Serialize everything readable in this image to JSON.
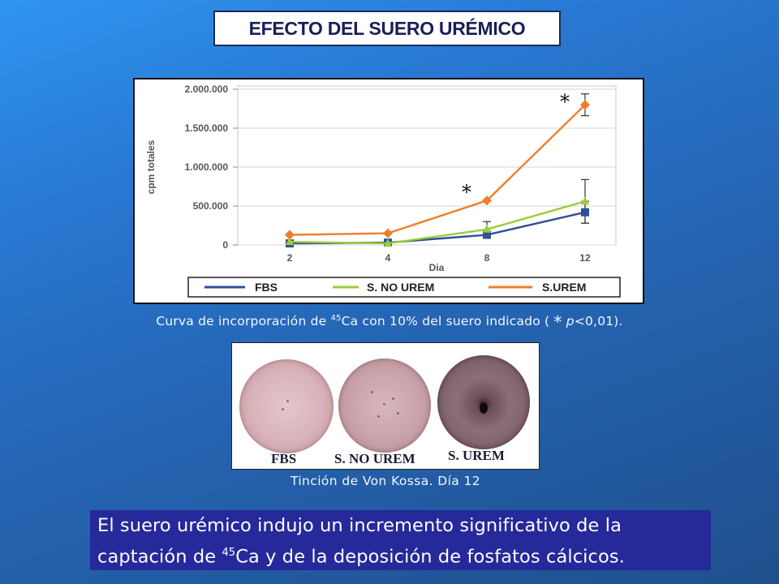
{
  "title": "EFECTO DEL SUERO URÉMICO",
  "chart_data": {
    "type": "line",
    "x": [
      2,
      4,
      8,
      12
    ],
    "xlabel": "Dia",
    "ylabel": "cpm totales",
    "ylim": [
      0,
      2000000
    ],
    "yticks": [
      0,
      500000,
      1000000,
      1500000,
      2000000
    ],
    "ytick_labels": [
      "0",
      "500.000",
      "1.000.000",
      "1.500.000",
      "2.000.000"
    ],
    "xtick_labels": [
      "2",
      "4",
      "8",
      "12"
    ],
    "grid": true,
    "legend_position": "bottom",
    "series": [
      {
        "name": "FBS",
        "color": "#2e4f9a",
        "marker": "square",
        "values": [
          20000,
          30000,
          130000,
          420000
        ],
        "errors": [
          0,
          0,
          0,
          140000
        ]
      },
      {
        "name": "S. NO UREM",
        "color": "#9ccc3a",
        "marker": "triangle",
        "values": [
          40000,
          20000,
          200000,
          560000
        ],
        "errors": [
          0,
          0,
          100000,
          280000
        ]
      },
      {
        "name": "S.UREM",
        "color": "#f07d28",
        "marker": "diamond",
        "values": [
          130000,
          150000,
          570000,
          1800000
        ],
        "errors": [
          0,
          0,
          0,
          140000
        ]
      }
    ],
    "annotations": [
      {
        "text": "*",
        "x": 8,
        "y": 700000
      },
      {
        "text": "*",
        "x": 12,
        "y": 1860000
      }
    ]
  },
  "caption": {
    "pre": "Curva de incorporación de ",
    "sup": "45",
    "mid": "Ca con 10% del suero indicado ( ",
    "star": "*",
    "p": "p",
    "post": "<0,01)."
  },
  "photo_labels": {
    "fbs": "FBS",
    "no_urem": "S. NO UREM",
    "urem": "S. UREM"
  },
  "caption2": "Tinción de Von Kossa. Día 12",
  "conclusion": {
    "line1": "El suero urémico indujo un incremento significativo de la",
    "line2_pre": "captación de ",
    "line2_sup": "45",
    "line2_post": "Ca y de la deposición de fosfatos cálcicos."
  }
}
